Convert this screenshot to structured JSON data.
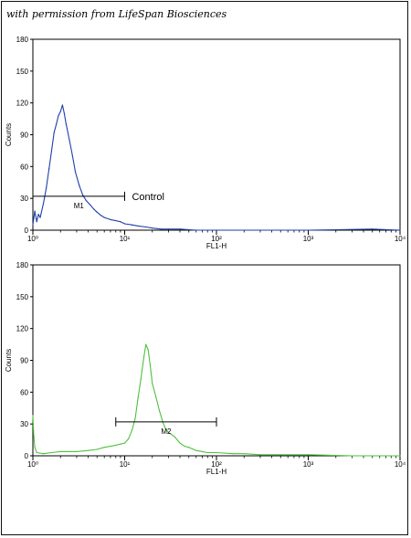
{
  "permission_note": "with permission from LifeSpan Biosciences",
  "colors": {
    "control": "#1f3fa8",
    "sample": "#4cc23c",
    "axis": "#000000"
  },
  "chart_data": [
    {
      "type": "line",
      "title": "",
      "xlabel": "FL1-H",
      "ylabel": "Counts",
      "x_scale": "log",
      "xlim": [
        1,
        10000
      ],
      "ylim": [
        0,
        180
      ],
      "x_ticks": [
        {
          "value": 1,
          "label": "10⁰"
        },
        {
          "value": 10,
          "label": "10¹"
        },
        {
          "value": 100,
          "label": "10²"
        },
        {
          "value": 1000,
          "label": "10³"
        },
        {
          "value": 10000,
          "label": "10⁴"
        }
      ],
      "y_ticks": [
        0,
        30,
        60,
        90,
        120,
        150,
        180
      ],
      "grid": false,
      "series": [
        {
          "color": "#1f3fa8",
          "x": [
            1.0,
            1.05,
            1.1,
            1.15,
            1.2,
            1.3,
            1.4,
            1.5,
            1.6,
            1.7,
            1.8,
            1.9,
            2.0,
            2.1,
            2.2,
            2.3,
            2.5,
            2.7,
            2.9,
            3.2,
            3.5,
            3.8,
            4.2,
            4.6,
            5.0,
            5.5,
            6.0,
            7.0,
            8.0,
            9.0,
            10.0,
            12.0,
            14.0,
            17.0,
            20.0,
            25.0,
            30.0,
            40.0,
            60.0,
            100.0,
            300.0,
            1000.0,
            5000.0,
            10000.0
          ],
          "y": [
            5,
            18,
            8,
            15,
            12,
            25,
            40,
            58,
            75,
            92,
            100,
            108,
            112,
            118,
            110,
            100,
            85,
            70,
            55,
            42,
            33,
            28,
            24,
            20,
            17,
            14,
            12,
            10,
            9,
            8,
            6,
            5,
            4,
            3,
            2,
            1,
            1,
            1,
            0,
            0,
            0,
            0,
            1,
            0
          ]
        }
      ],
      "markers": [
        {
          "label": "M1",
          "x_start": 1,
          "x_end": 10,
          "y": 32
        }
      ],
      "annotations": [
        {
          "text": "Control",
          "x": 12,
          "y": 32
        }
      ]
    },
    {
      "type": "line",
      "title": "",
      "xlabel": "FL1-H",
      "ylabel": "Counts",
      "x_scale": "log",
      "xlim": [
        1,
        10000
      ],
      "ylim": [
        0,
        180
      ],
      "x_ticks": [
        {
          "value": 1,
          "label": "10⁰"
        },
        {
          "value": 10,
          "label": "10¹"
        },
        {
          "value": 100,
          "label": "10²"
        },
        {
          "value": 1000,
          "label": "10³"
        },
        {
          "value": 10000,
          "label": "10⁴"
        }
      ],
      "y_ticks": [
        0,
        30,
        60,
        90,
        120,
        150,
        180
      ],
      "grid": false,
      "series": [
        {
          "color": "#4cc23c",
          "x": [
            1.0,
            1.02,
            1.05,
            1.1,
            1.3,
            1.6,
            2.0,
            3.0,
            4.0,
            5.0,
            6.0,
            7.0,
            8.0,
            9.0,
            10.0,
            11.0,
            12.0,
            13.0,
            14.0,
            15.0,
            16.0,
            17.0,
            18.0,
            19.0,
            20.0,
            22.0,
            24.0,
            26.0,
            28.0,
            30.0,
            35.0,
            40.0,
            45.0,
            50.0,
            60.0,
            70.0,
            80.0,
            100.0,
            150.0,
            200.0,
            300.0,
            500.0,
            1000.0,
            3000.0,
            10000.0
          ],
          "y": [
            38,
            20,
            8,
            3,
            2,
            3,
            4,
            4,
            5,
            6,
            8,
            9,
            10,
            11,
            12,
            16,
            24,
            35,
            55,
            72,
            90,
            105,
            100,
            85,
            68,
            55,
            42,
            32,
            25,
            22,
            18,
            12,
            9,
            8,
            5,
            4,
            3,
            3,
            2,
            2,
            1,
            1,
            1,
            0,
            0
          ]
        }
      ],
      "markers": [
        {
          "label": "M2",
          "x_start": 8,
          "x_end": 100,
          "y": 32
        }
      ],
      "annotations": []
    }
  ]
}
